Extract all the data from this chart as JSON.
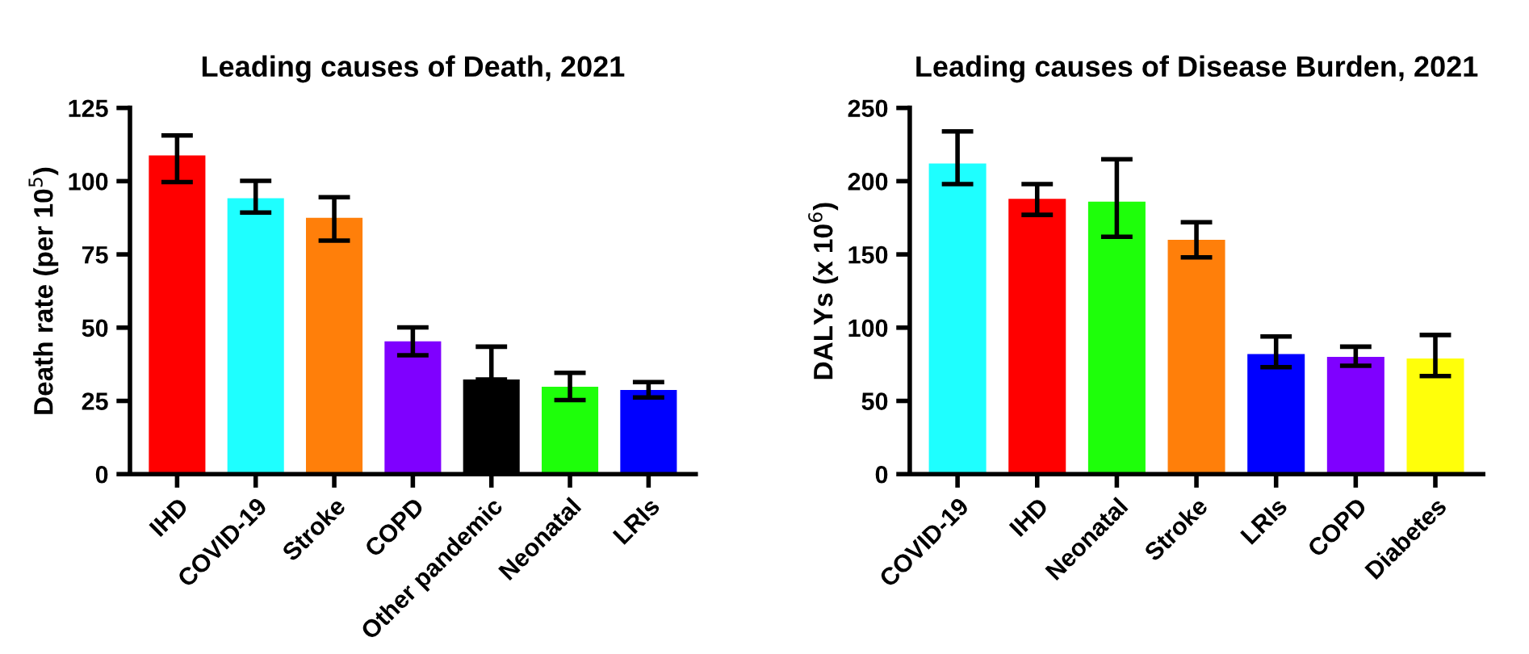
{
  "chart_data": [
    {
      "type": "bar",
      "title": "Leading causes of Death, 2021",
      "ylabel": "Death rate (per 10$^{5}$)",
      "categories": [
        "IHD",
        "COVID-19",
        "Stroke",
        "COPD",
        "Other pandemic",
        "Neonatal",
        "LRIs"
      ],
      "values": [
        108.8,
        94.2,
        87.5,
        45.3,
        32.3,
        29.8,
        28.7
      ],
      "colors": [
        "#ff0000",
        "#1effff",
        "#ff7f0a",
        "#7f00ff",
        "#000000",
        "#1eff0a",
        "#0000ff"
      ],
      "errors": [
        [
          99.7,
          115.6
        ],
        [
          89.3,
          100.1
        ],
        [
          79.7,
          94.5
        ],
        [
          40.6,
          50.1
        ],
        [
          32.3,
          43.5
        ],
        [
          25.3,
          34.6
        ],
        [
          26.2,
          31.4
        ]
      ],
      "ylim": [
        0,
        125
      ],
      "yticks": [
        0,
        25,
        50,
        75,
        100,
        125
      ],
      "grid": false,
      "legend": false
    },
    {
      "type": "bar",
      "title": "Leading causes of Disease Burden, 2021",
      "ylabel": "DALYs (x 10$^{6}$)",
      "categories": [
        "COVID-19",
        "IHD",
        "Neonatal",
        "Stroke",
        "LRIs",
        "COPD",
        "Diabetes"
      ],
      "values": [
        212,
        188,
        186,
        160,
        82,
        80,
        79
      ],
      "colors": [
        "#1effff",
        "#ff0000",
        "#1eff0a",
        "#ff7f0a",
        "#0000ff",
        "#7f00ff",
        "#ffff0a"
      ],
      "errors": [
        [
          198,
          234
        ],
        [
          177,
          198
        ],
        [
          162,
          215
        ],
        [
          148,
          172
        ],
        [
          73,
          94
        ],
        [
          74,
          87
        ],
        [
          67,
          95
        ]
      ],
      "ylim": [
        0,
        250
      ],
      "yticks": [
        0,
        50,
        100,
        150,
        200,
        250
      ],
      "grid": false,
      "legend": false
    }
  ]
}
